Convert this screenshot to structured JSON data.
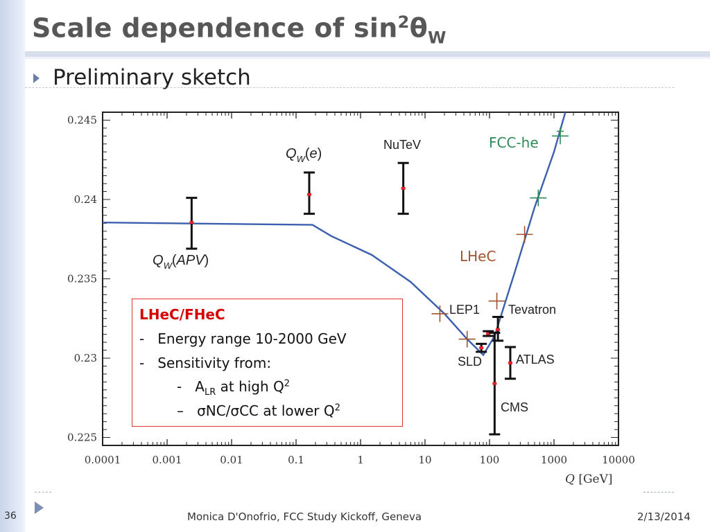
{
  "slide": {
    "title_main": "Scale dependence of  sin",
    "title_sup": "2",
    "title_theta": "θ",
    "title_sub": "W",
    "bullet": "Preliminary sketch"
  },
  "footer": {
    "slide_number": "36",
    "center": "Monica D'Onofrio, FCC Study Kickoff, Geneva",
    "date": "2/13/2014"
  },
  "textbox": {
    "title": "LHeC/FHeC",
    "line1_dash": "-",
    "line1": "Energy range 10-2000 GeV",
    "line2_dash": "-",
    "line2": "Sensitivity from:",
    "sub1_dash": "-",
    "sub1_a": "A",
    "sub1_sub": "LR",
    "sub1_b": " at high Q",
    "sub1_sup": "2",
    "sub2_dash": "–",
    "sub2": "σNC/σCC at lower Q",
    "sub2_sup": "2"
  },
  "colors": {
    "curve": "#3a5fae",
    "error_bar": "#111111",
    "central_point": "#e8202a",
    "lhec": "#a0522d",
    "fcche": "#2e8b57",
    "box_border": "#dd3333",
    "box_title": "#d50000"
  },
  "chart_data": {
    "type": "scatter",
    "xscale": "log",
    "xlim": [
      0.0001,
      10000
    ],
    "ylim": [
      0.2245,
      0.2455
    ],
    "xlabel": "Q [GeV]",
    "xticks": [
      "0.0001",
      "0.001",
      "0.01",
      "0.1",
      "1",
      "10",
      "100",
      "1000",
      "10000"
    ],
    "yticks": [
      "0.225",
      "0.23",
      "0.235",
      "0.24",
      "0.245"
    ],
    "curve": [
      {
        "x": 0.0001,
        "y": 0.23855
      },
      {
        "x": 0.18,
        "y": 0.2384
      },
      {
        "x": 0.35,
        "y": 0.2377
      },
      {
        "x": 1.5,
        "y": 0.2365
      },
      {
        "x": 6,
        "y": 0.2348
      },
      {
        "x": 20,
        "y": 0.2328
      },
      {
        "x": 45,
        "y": 0.2312
      },
      {
        "x": 80,
        "y": 0.2302
      },
      {
        "x": 120,
        "y": 0.2314
      },
      {
        "x": 250,
        "y": 0.2355
      },
      {
        "x": 500,
        "y": 0.2395
      },
      {
        "x": 1000,
        "y": 0.243
      },
      {
        "x": 1500,
        "y": 0.2455
      }
    ],
    "measurements": [
      {
        "name": "Q_W(APV)",
        "x": 0.0024,
        "y": 0.23855,
        "lo": 0.2369,
        "hi": 0.2401
      },
      {
        "name": "Q_W(e)",
        "x": 0.16,
        "y": 0.24031,
        "lo": 0.2391,
        "hi": 0.2417
      },
      {
        "name": "NuTeV",
        "x": 4.6,
        "y": 0.2407,
        "lo": 0.2391,
        "hi": 0.2423
      },
      {
        "name": "LEP1",
        "x": 91,
        "y": 0.23155,
        "lo": 0.2314,
        "hi": 0.2317
      },
      {
        "name": "SLD",
        "x": 91,
        "y": 0.23065,
        "lo": 0.2304,
        "hi": 0.2309
      },
      {
        "name": "Tevatron",
        "x": 135,
        "y": 0.2318,
        "lo": 0.2311,
        "hi": 0.2326
      },
      {
        "name": "ATLAS",
        "x": 210,
        "y": 0.2297,
        "lo": 0.2287,
        "hi": 0.2307
      },
      {
        "name": "CMS",
        "x": 120,
        "y": 0.2284,
        "lo": 0.2252,
        "hi": 0.2316
      }
    ],
    "lhec_points": [
      {
        "x": 17,
        "y": 0.2328
      },
      {
        "x": 45,
        "y": 0.2312
      },
      {
        "x": 130,
        "y": 0.2336
      },
      {
        "x": 350,
        "y": 0.2378
      }
    ],
    "fcche_points": [
      {
        "x": 570,
        "y": 0.2401
      },
      {
        "x": 1250,
        "y": 0.244
      },
      {
        "x": 1250,
        "y": 0.2443
      }
    ],
    "annotations": {
      "qw_apv": "Q_W(APV)",
      "qw_e": "Q_W(e)",
      "nutev": "NuTeV",
      "lep1": "LEP1",
      "tevatron": "Tevatron",
      "sld": "SLD",
      "atlas": "ATLAS",
      "cms": "CMS",
      "lhec": "LHeC",
      "fcche": "FCC-he"
    }
  }
}
